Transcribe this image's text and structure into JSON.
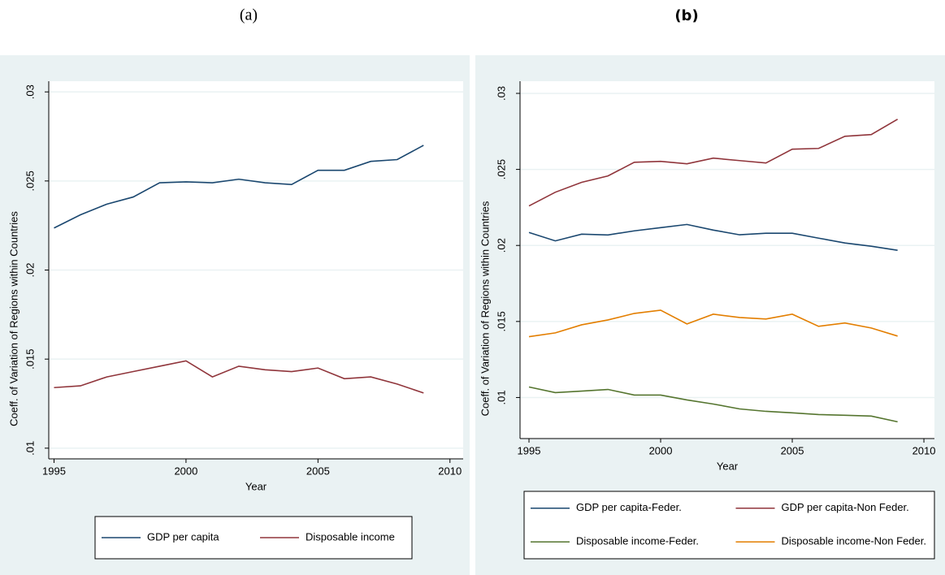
{
  "chart_data": [
    {
      "type": "line",
      "title": "(a)",
      "xlabel": "Year",
      "ylabel": "Coeff. of Variation of Regions within Countries",
      "x": [
        1995,
        1996,
        1997,
        1998,
        1999,
        2000,
        2001,
        2002,
        2003,
        2004,
        2005,
        2006,
        2007,
        2008,
        2009
      ],
      "xlim": [
        1994.8,
        2010.5
      ],
      "xticks": [
        1995,
        2000,
        2005,
        2010
      ],
      "ylim": [
        0.0094,
        0.0306
      ],
      "yticks": [
        {
          "value": 0.01,
          "label": ".01"
        },
        {
          "value": 0.015,
          "label": ".015"
        },
        {
          "value": 0.02,
          "label": ".02"
        },
        {
          "value": 0.025,
          "label": ".025"
        },
        {
          "value": 0.03,
          "label": ".03"
        }
      ],
      "grid": true,
      "series": [
        {
          "name": "GDP per capita",
          "color": "#1a476f",
          "values": [
            0.02236,
            0.0231,
            0.0237,
            0.0241,
            0.0249,
            0.02495,
            0.0249,
            0.0251,
            0.0249,
            0.0248,
            0.0256,
            0.0256,
            0.0261,
            0.0262,
            0.027
          ]
        },
        {
          "name": "Disposable income",
          "color": "#90353b",
          "values": [
            0.0134,
            0.0135,
            0.014,
            0.0143,
            0.0146,
            0.0149,
            0.014,
            0.0146,
            0.0144,
            0.0143,
            0.0145,
            0.0139,
            0.014,
            0.0136,
            0.0131
          ]
        }
      ]
    },
    {
      "type": "line",
      "title": "(b)",
      "xlabel": "Year",
      "ylabel": "Coeff. of Variation of Regions within Countries",
      "x": [
        1995,
        1996,
        1997,
        1998,
        1999,
        2000,
        2001,
        2002,
        2003,
        2004,
        2005,
        2006,
        2007,
        2008,
        2009
      ],
      "xlim": [
        1994.66,
        2010.4
      ],
      "xticks": [
        1995,
        2000,
        2005,
        2010
      ],
      "ylim": [
        0.0073,
        0.0308
      ],
      "yticks": [
        {
          "value": 0.01,
          "label": ".01"
        },
        {
          "value": 0.015,
          "label": ".015"
        },
        {
          "value": 0.02,
          "label": ".02"
        },
        {
          "value": 0.025,
          "label": ".025"
        },
        {
          "value": 0.03,
          "label": ".03"
        }
      ],
      "grid": true,
      "series": [
        {
          "name": "GDP per capita-Feder.",
          "color": "#1a476f",
          "values": [
            0.02085,
            0.0203,
            0.02074,
            0.02069,
            0.02096,
            0.02117,
            0.02138,
            0.02101,
            0.0207,
            0.0208,
            0.0208,
            0.02048,
            0.02016,
            0.01995,
            0.01968
          ]
        },
        {
          "name": "GDP per capita-Non Feder.",
          "color": "#90353b",
          "values": [
            0.0226,
            0.0235,
            0.02415,
            0.02457,
            0.02547,
            0.02553,
            0.02537,
            0.02574,
            0.02558,
            0.02542,
            0.02633,
            0.02638,
            0.02718,
            0.02729,
            0.0283
          ]
        },
        {
          "name": "Disposable income-Feder.",
          "color": "#55752f",
          "values": [
            0.01069,
            0.01032,
            0.01042,
            0.01053,
            0.01016,
            0.01016,
            0.00984,
            0.00957,
            0.00925,
            0.00909,
            0.00899,
            0.00888,
            0.00883,
            0.00878,
            0.0084
          ]
        },
        {
          "name": "Disposable income-Non Feder.",
          "color": "#e37e00",
          "values": [
            0.014,
            0.01425,
            0.01478,
            0.0151,
            0.01553,
            0.01574,
            0.01484,
            0.01548,
            0.01526,
            0.01516,
            0.01548,
            0.01468,
            0.0149,
            0.01457,
            0.01404
          ]
        }
      ]
    }
  ]
}
